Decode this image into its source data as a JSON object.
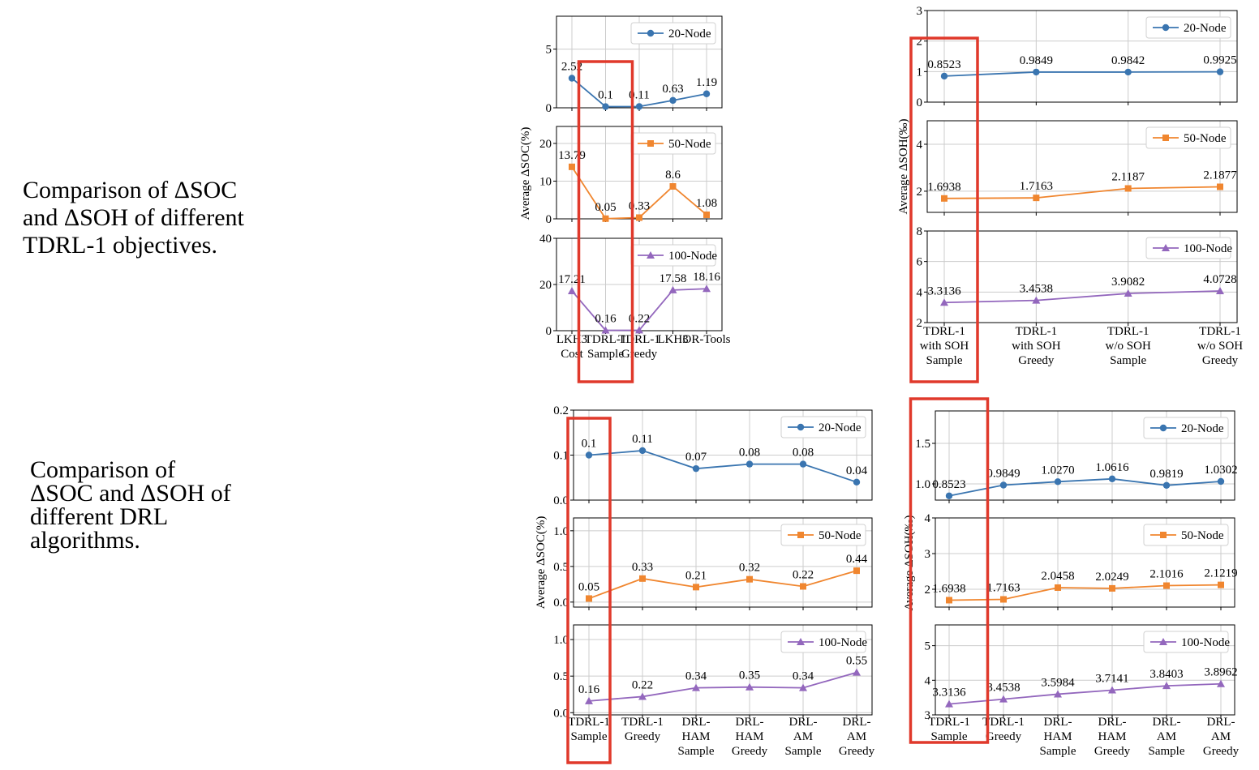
{
  "captions": {
    "top": "Comparison of ΔSOC\nand ΔSOH of different\nTDRL-1 objectives.",
    "bottom": "Comparison of\nΔSOC and ΔSOH of\ndifferent DRL\nalgorithms."
  },
  "colors": {
    "20": "#3a75b0",
    "50": "#f0862f",
    "100": "#9367bd",
    "grid": "#cccccc",
    "highlight": "#e0392b"
  },
  "chart_data": [
    {
      "id": "top-left",
      "type": "line",
      "ylabel": "Average ΔSOC(%)",
      "categories": [
        [
          "LKH3",
          "Cost"
        ],
        [
          "TDRL-1",
          "Sample"
        ],
        [
          "TDRL-1",
          "Greedy"
        ],
        [
          "LKH3"
        ],
        [
          "OR-Tools"
        ]
      ],
      "highlight_index": 1,
      "panels": [
        {
          "name": "20-Node",
          "marker": "circle",
          "color_key": "20",
          "ylim": [
            0,
            7.8
          ],
          "yticks": [
            0,
            5
          ],
          "values": [
            2.52,
            0.1,
            0.11,
            0.63,
            1.19
          ],
          "labels": [
            "2.52",
            "0.1",
            "0.11",
            "0.63",
            "1.19"
          ]
        },
        {
          "name": "50-Node",
          "marker": "square",
          "color_key": "50",
          "ylim": [
            0,
            24.5
          ],
          "yticks": [
            0,
            10,
            20
          ],
          "values": [
            13.79,
            0.05,
            0.33,
            8.6,
            1.08
          ],
          "labels": [
            "13.79",
            "0.05",
            "0.33",
            "8.6",
            "1.08"
          ]
        },
        {
          "name": "100-Node",
          "marker": "triangle",
          "color_key": "100",
          "ylim": [
            0,
            40
          ],
          "yticks": [
            0,
            20,
            40
          ],
          "values": [
            17.21,
            0.16,
            0.22,
            17.58,
            18.16
          ],
          "labels": [
            "17.21",
            "0.16",
            "0.22",
            "17.58",
            "18.16"
          ]
        }
      ]
    },
    {
      "id": "top-right",
      "type": "line",
      "ylabel": "Average ΔSOH(‰)",
      "categories": [
        [
          "TDRL-1",
          "with SOH",
          "Sample"
        ],
        [
          "TDRL-1",
          "with SOH",
          "Greedy"
        ],
        [
          "TDRL-1",
          "w/o SOH",
          "Sample"
        ],
        [
          "TDRL-1",
          "w/o SOH",
          "Greedy"
        ]
      ],
      "highlight_index": 0,
      "panels": [
        {
          "name": "20-Node",
          "marker": "circle",
          "color_key": "20",
          "ylim": [
            0,
            3
          ],
          "yticks": [
            0,
            1,
            2,
            3
          ],
          "values": [
            0.8523,
            0.9849,
            0.9842,
            0.9925
          ],
          "labels": [
            "0.8523",
            "0.9849",
            "0.9842",
            "0.9925"
          ]
        },
        {
          "name": "50-Node",
          "marker": "square",
          "color_key": "50",
          "ylim": [
            1.1,
            5.0
          ],
          "yticks": [
            2,
            4
          ],
          "values": [
            1.6938,
            1.7163,
            2.1187,
            2.1877
          ],
          "labels": [
            "1.6938",
            "1.7163",
            "2.1187",
            "2.1877"
          ]
        },
        {
          "name": "100-Node",
          "marker": "triangle",
          "color_key": "100",
          "ylim": [
            2,
            8
          ],
          "yticks": [
            2,
            4,
            6,
            8
          ],
          "values": [
            3.3136,
            3.4538,
            3.9082,
            4.0728
          ],
          "labels": [
            "3.3136",
            "3.4538",
            "3.9082",
            "4.0728"
          ]
        }
      ]
    },
    {
      "id": "bottom-left",
      "type": "line",
      "ylabel": "Average ΔSOC(%)",
      "categories": [
        [
          "TDRL-1",
          "Sample"
        ],
        [
          "TDRL-1",
          "Greedy"
        ],
        [
          "DRL-",
          "HAM",
          "Sample"
        ],
        [
          "DRL-",
          "HAM",
          "Greedy"
        ],
        [
          "DRL-",
          "AM",
          "Sample"
        ],
        [
          "DRL-",
          "AM",
          "Greedy"
        ]
      ],
      "highlight_index": 0,
      "panels": [
        {
          "name": "20-Node",
          "marker": "circle",
          "color_key": "20",
          "ylim": [
            0,
            0.2
          ],
          "yticks": [
            0.0,
            0.1,
            0.2
          ],
          "tickfmt": 1,
          "values": [
            0.1,
            0.11,
            0.07,
            0.08,
            0.08,
            0.04
          ],
          "labels": [
            "0.1",
            "0.11",
            "0.07",
            "0.08",
            "0.08",
            "0.04"
          ]
        },
        {
          "name": "50-Node",
          "marker": "square",
          "color_key": "50",
          "ylim": [
            -0.07,
            1.18
          ],
          "yticks": [
            0.0,
            0.5,
            1.0
          ],
          "tickfmt": 1,
          "values": [
            0.05,
            0.33,
            0.21,
            0.32,
            0.22,
            0.44
          ],
          "labels": [
            "0.05",
            "0.33",
            "0.21",
            "0.32",
            "0.22",
            "0.44"
          ]
        },
        {
          "name": "100-Node",
          "marker": "triangle",
          "color_key": "100",
          "ylim": [
            -0.03,
            1.2
          ],
          "yticks": [
            0.0,
            0.5,
            1.0
          ],
          "tickfmt": 1,
          "values": [
            0.16,
            0.22,
            0.34,
            0.35,
            0.34,
            0.55
          ],
          "labels": [
            "0.16",
            "0.22",
            "0.34",
            "0.35",
            "0.34",
            "0.55"
          ]
        }
      ]
    },
    {
      "id": "bottom-right",
      "type": "line",
      "ylabel": "Average ΔSOH(‰)",
      "categories": [
        [
          "TDRL-1",
          "Sample"
        ],
        [
          "TDRL-1",
          "Greedy"
        ],
        [
          "DRL-",
          "HAM",
          "Sample"
        ],
        [
          "DRL-",
          "HAM",
          "Greedy"
        ],
        [
          "DRL-",
          "AM",
          "Sample"
        ],
        [
          "DRL-",
          "AM",
          "Greedy"
        ]
      ],
      "highlight_index": 0,
      "panels": [
        {
          "name": "20-Node",
          "marker": "circle",
          "color_key": "20",
          "ylim": [
            0.8,
            1.9
          ],
          "yticks": [
            1.0,
            1.5
          ],
          "tickfmt": 1,
          "values": [
            0.8523,
            0.9849,
            1.027,
            1.0616,
            0.9819,
            1.0302
          ],
          "labels": [
            "0.8523",
            "0.9849",
            "1.0270",
            "1.0616",
            "0.9819",
            "1.0302"
          ]
        },
        {
          "name": "50-Node",
          "marker": "square",
          "color_key": "50",
          "ylim": [
            1.5,
            4.0
          ],
          "yticks": [
            2,
            3,
            4
          ],
          "values": [
            1.6938,
            1.7163,
            2.0458,
            2.0249,
            2.1016,
            2.1219
          ],
          "labels": [
            "1.6938",
            "1.7163",
            "2.0458",
            "2.0249",
            "2.1016",
            "2.1219"
          ]
        },
        {
          "name": "100-Node",
          "marker": "triangle",
          "color_key": "100",
          "ylim": [
            3,
            5.6
          ],
          "yticks": [
            3,
            4,
            5
          ],
          "values": [
            3.3136,
            3.4538,
            3.5984,
            3.7141,
            3.8403,
            3.8962
          ],
          "labels": [
            "3.3136",
            "3.4538",
            "3.5984",
            "3.7141",
            "3.8403",
            "3.8962"
          ]
        }
      ]
    }
  ]
}
